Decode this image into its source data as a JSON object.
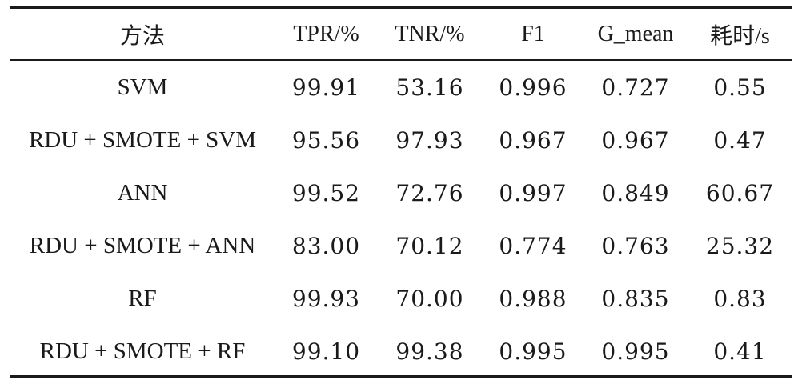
{
  "table": {
    "headers": [
      "方法",
      "TPR/%",
      "TNR/%",
      "F1",
      "G_mean",
      "耗时/s"
    ],
    "rows": [
      [
        "SVM",
        "99.91",
        "53.16",
        "0.996",
        "0.727",
        "0.55"
      ],
      [
        "RDU + SMOTE + SVM",
        "95.56",
        "97.93",
        "0.967",
        "0.967",
        "0.47"
      ],
      [
        "ANN",
        "99.52",
        "72.76",
        "0.997",
        "0.849",
        "60.67"
      ],
      [
        "RDU + SMOTE + ANN",
        "83.00",
        "70.12",
        "0.774",
        "0.763",
        "25.32"
      ],
      [
        "RF",
        "99.93",
        "70.00",
        "0.988",
        "0.835",
        "0.83"
      ],
      [
        "RDU + SMOTE + RF",
        "99.10",
        "99.38",
        "0.995",
        "0.995",
        "0.41"
      ]
    ]
  }
}
